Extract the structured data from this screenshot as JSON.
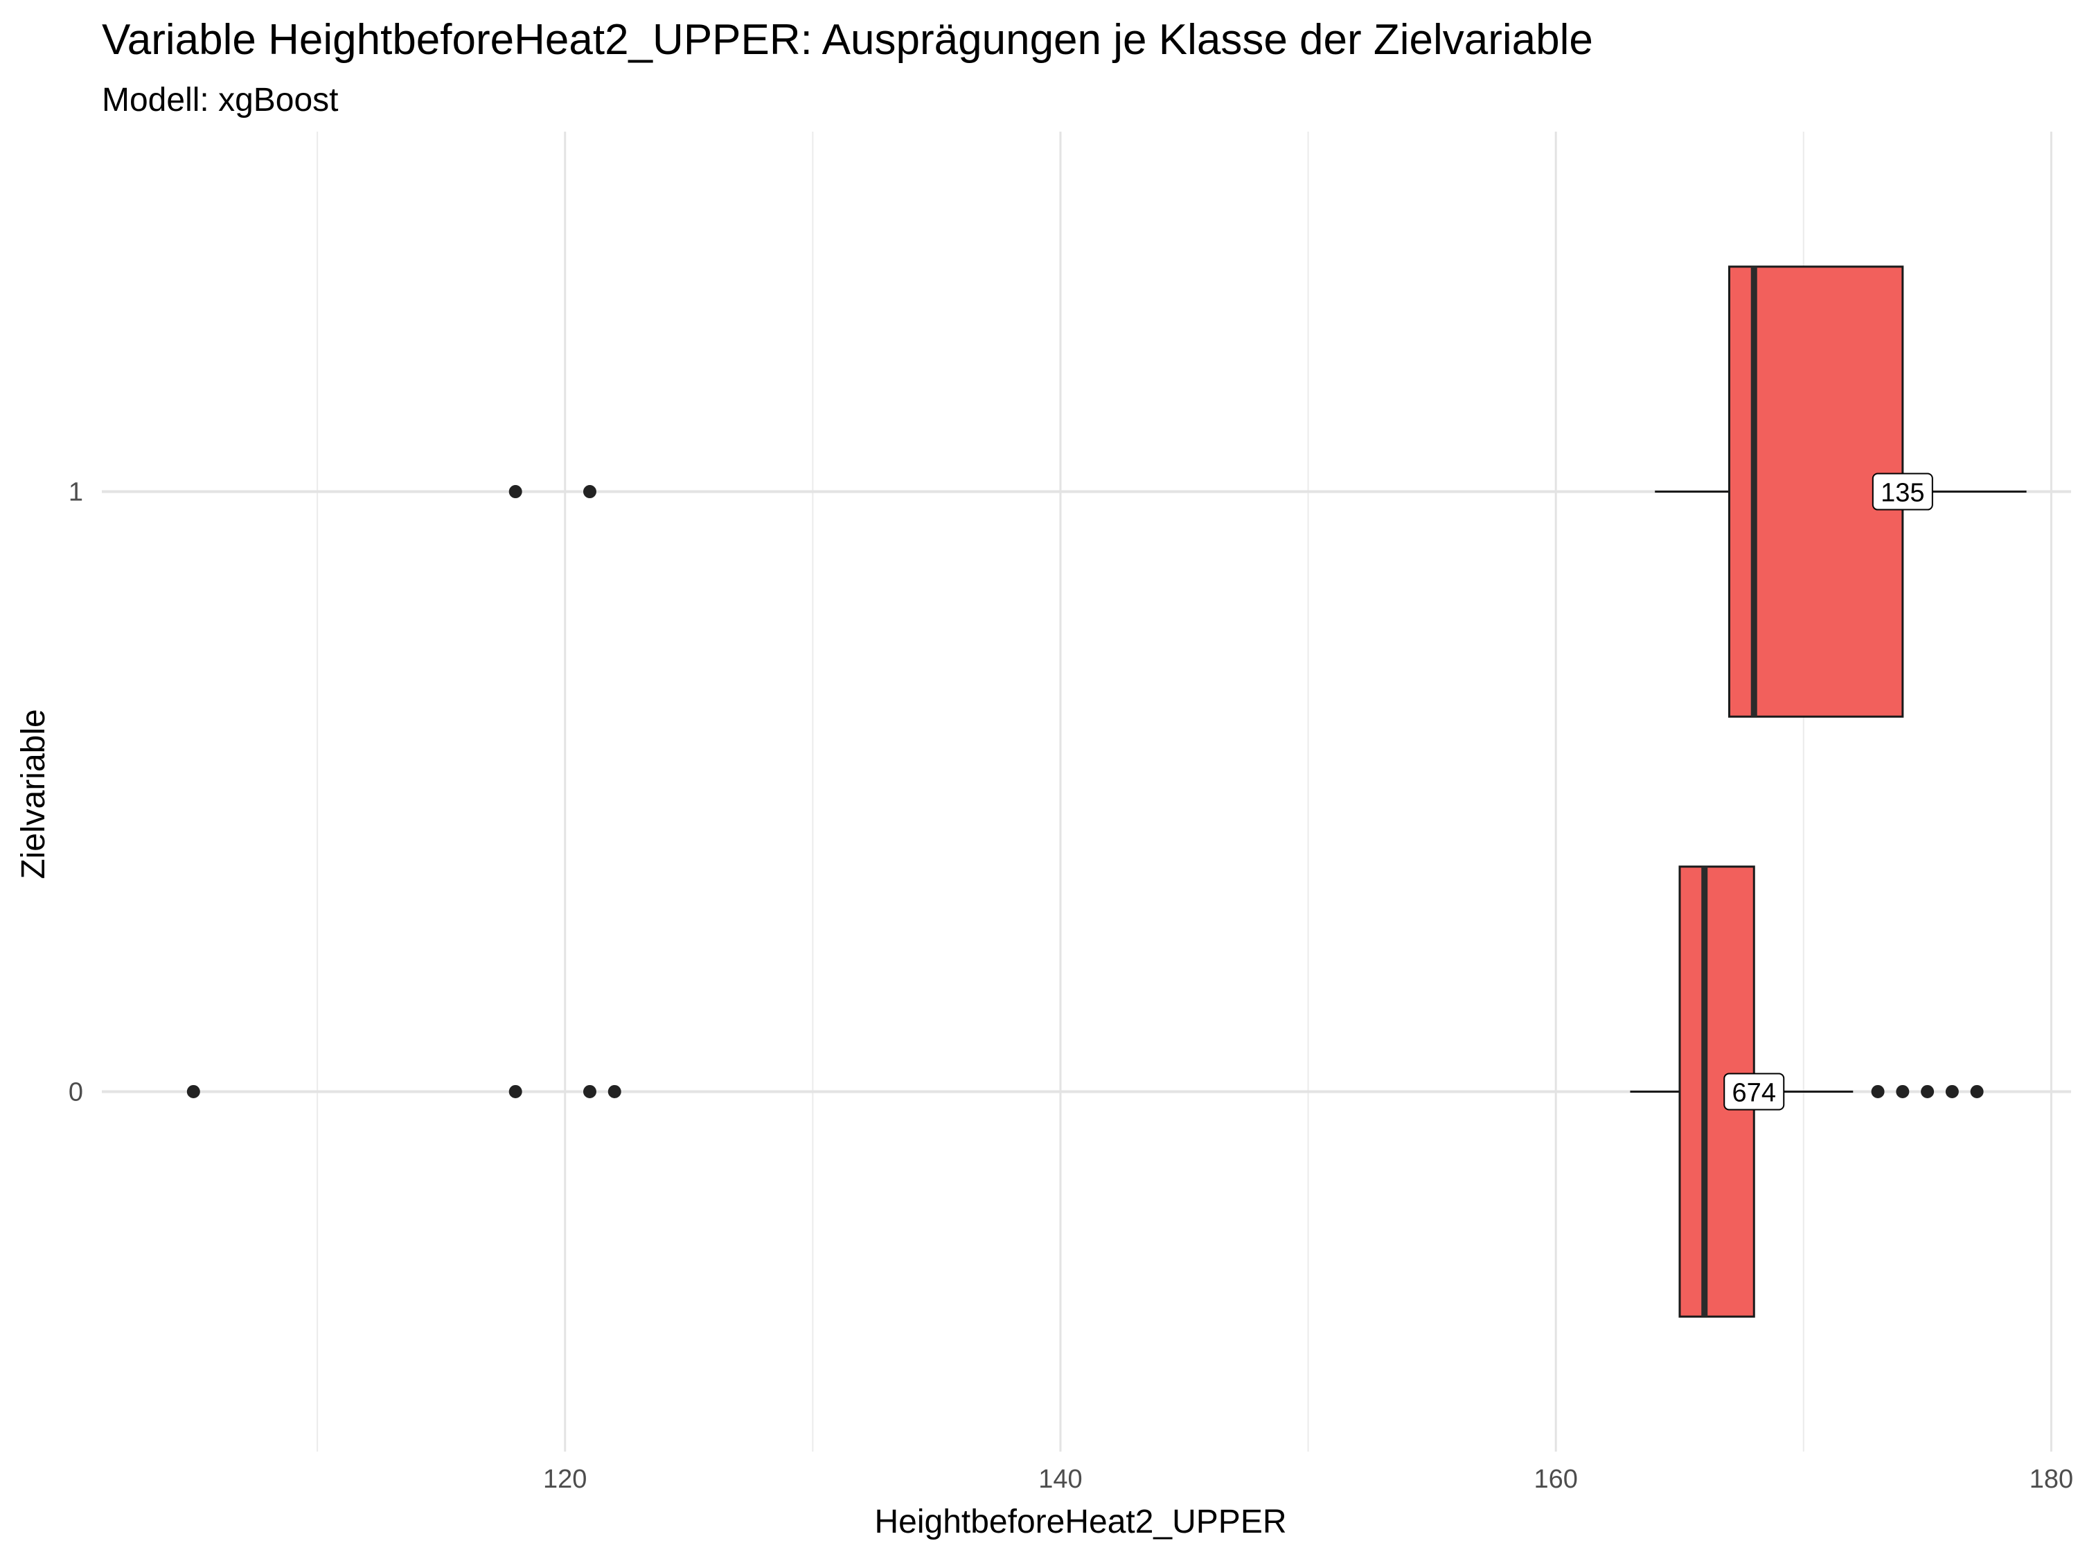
{
  "chart_data": {
    "type": "boxplot",
    "orientation": "horizontal",
    "title": "Variable HeightbeforeHeat2_UPPER: Ausprägungen je Klasse der Zielvariable",
    "subtitle": "Modell: xgBoost",
    "xlabel": "HeightbeforeHeat2_UPPER",
    "ylabel": "Zielvariable",
    "xlim": [
      101.3,
      180.8
    ],
    "xticks": [
      120,
      140,
      160,
      180
    ],
    "xtick_labels": [
      "120",
      "140",
      "160",
      "180"
    ],
    "grid": true,
    "legend": "none",
    "box_color": "#f2605c",
    "categories": [
      "0",
      "1"
    ],
    "boxes": [
      {
        "category": "0",
        "whisker_low": 163,
        "q1": 165,
        "median": 166,
        "q3": 168,
        "whisker_high": 172,
        "outliers": [
          105,
          118,
          121,
          122,
          173,
          174,
          175,
          176,
          177
        ],
        "count_label": "674"
      },
      {
        "category": "1",
        "whisker_low": 164,
        "q1": 167,
        "median": 168,
        "q3": 174,
        "whisker_high": 179,
        "outliers": [
          118,
          121
        ],
        "count_label": "135"
      }
    ]
  }
}
